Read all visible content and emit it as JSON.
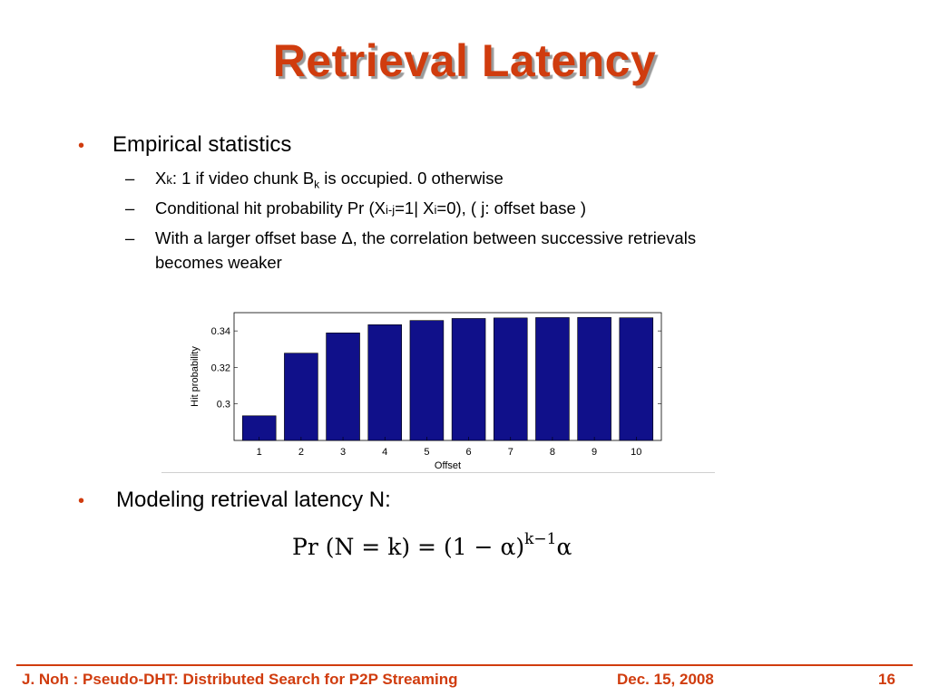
{
  "slide": {
    "title": "Retrieval Latency",
    "bullet1": "Empirical statistics",
    "sub1": {
      "a": "X",
      "b": "k",
      "c": ": 1 if video chunk B",
      "d": "k",
      "e": " is occupied. 0 otherwise"
    },
    "sub2": {
      "a": "Conditional hit probability Pr (X",
      "b": "i-j",
      "c": "=1| X",
      "d": "i",
      "e": "=0), ( j: offset base )"
    },
    "sub3": {
      "line1": "With a larger offset base Δ, the correlation between successive retrievals",
      "line2": "becomes weaker"
    },
    "bullet2": "Modeling retrieval latency N:",
    "formula": {
      "lhs": "Pr",
      "paren": "(N = k) = (1 − α)",
      "exp": "k−1",
      "tail": "α"
    },
    "bullet_symbol": "•",
    "dash_symbol": "–",
    "colors": {
      "accent": "#d03c0e",
      "bar": "#10108a"
    }
  },
  "footer": {
    "author_title": "J. Noh : Pseudo-DHT: Distributed Search for P2P Streaming",
    "date": "Dec. 15, 2008",
    "page": "16"
  },
  "chart_data": {
    "type": "bar",
    "categories": [
      "1",
      "2",
      "3",
      "4",
      "5",
      "6",
      "7",
      "8",
      "9",
      "10"
    ],
    "values": [
      0.2935,
      0.3278,
      0.3389,
      0.3434,
      0.3457,
      0.3468,
      0.3471,
      0.3473,
      0.3474,
      0.3472
    ],
    "xlabel": "Offset",
    "ylabel": "Hit probability",
    "ylim": [
      0.28,
      0.35
    ],
    "yticks": [
      "0.3",
      "0.32",
      "0.34"
    ],
    "ytick_values": [
      0.3,
      0.32,
      0.34
    ],
    "grid": false
  }
}
